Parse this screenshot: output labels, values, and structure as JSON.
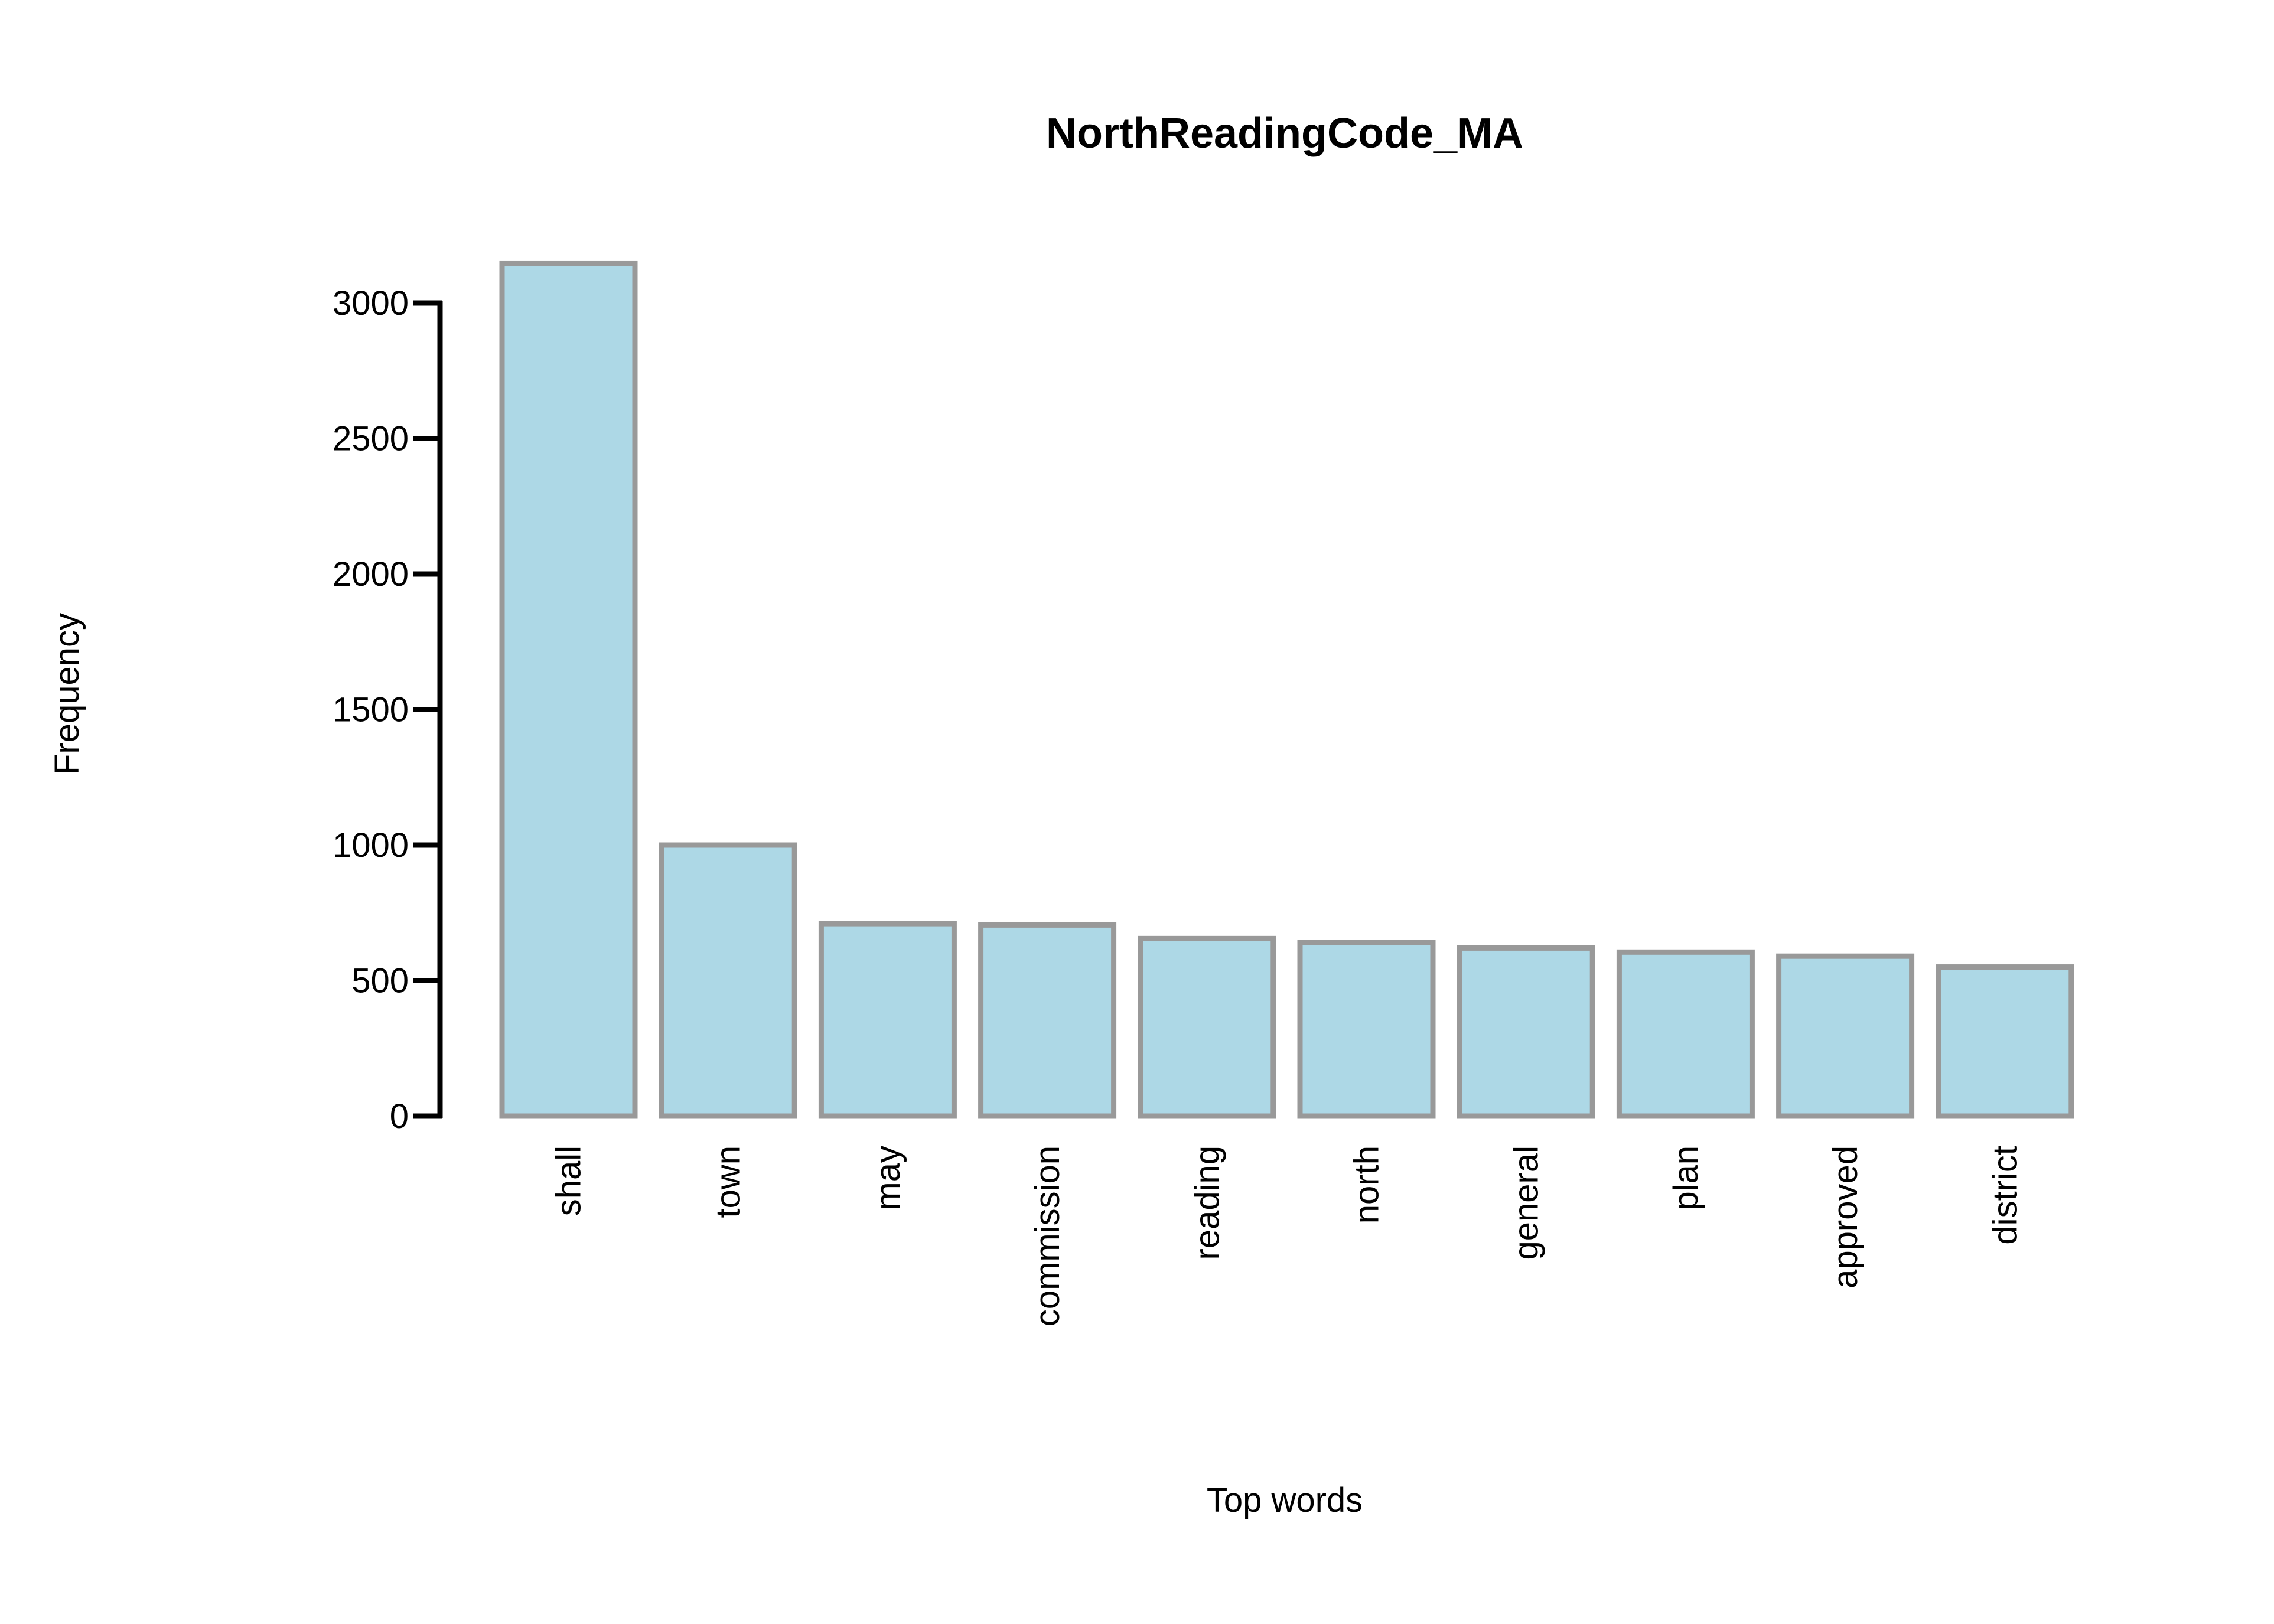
{
  "chart_data": {
    "type": "bar",
    "title": "NorthReadingCode_MA",
    "xlabel": "Top words",
    "ylabel": "Frequency",
    "categories": [
      "shall",
      "town",
      "may",
      "commission",
      "reading",
      "north",
      "general",
      "plan",
      "approved",
      "district"
    ],
    "values": [
      3145,
      1000,
      710,
      705,
      655,
      640,
      620,
      605,
      590,
      550
    ],
    "ylim": [
      0,
      3000
    ],
    "yticks": [
      0,
      500,
      1000,
      1500,
      2000,
      2500,
      3000
    ],
    "grid": false,
    "legend": "none",
    "bar_fill": "#add8e6",
    "bar_edge": "#999999"
  }
}
